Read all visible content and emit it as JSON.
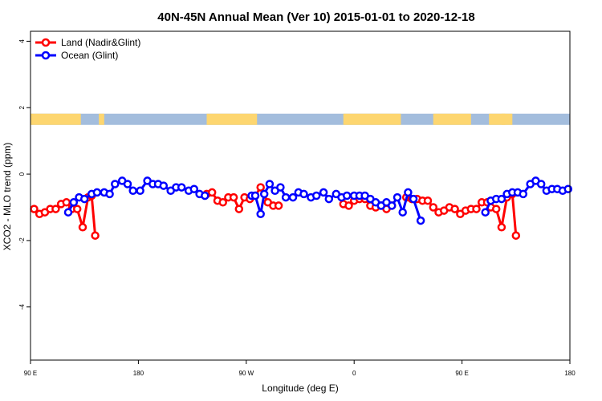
{
  "chart_data": {
    "type": "line",
    "title": "40N-45N Annual Mean (Ver 10)   2015-01-01 to 2020-12-18",
    "xlabel": "Longitude (deg E)",
    "ylabel": "XCO2 - MLO trend (ppm)",
    "xlim": [
      90,
      390
    ],
    "ylim": [
      -5.6,
      4.3
    ],
    "x_ticks": [
      {
        "value": 90,
        "label": "90 E"
      },
      {
        "value": 150,
        "label": "180"
      },
      {
        "value": 210,
        "label": "90 W"
      },
      {
        "value": 270,
        "label": "0"
      },
      {
        "value": 330,
        "label": "90 E"
      },
      {
        "value": 390,
        "label": "180"
      }
    ],
    "y_ticks": [
      {
        "value": 4,
        "label": "4"
      },
      {
        "value": 2,
        "label": "2"
      },
      {
        "value": 0,
        "label": "0"
      },
      {
        "value": -2,
        "label": "-2"
      },
      {
        "value": -4,
        "label": "-4"
      }
    ],
    "legend_position": "top-left",
    "land_ocean_strip": {
      "y_center": 1.65,
      "land_color": "#fdd670",
      "ocean_color": "#a3bddd",
      "land_ranges": [
        [
          90,
          118
        ],
        [
          128,
          131
        ],
        [
          188,
          216
        ],
        [
          264,
          296
        ],
        [
          314,
          335
        ],
        [
          345,
          354
        ],
        [
          352,
          358
        ]
      ],
      "land_label": "Land",
      "ocean_label": "Ocean"
    },
    "series": [
      {
        "name": "Land (Nadir&Glint)",
        "color": "#ff0000",
        "segments": [
          {
            "x": [
              92,
              95,
              98,
              101,
              104,
              107,
              110,
              113,
              116,
              119,
              122,
              124,
              126
            ],
            "y": [
              -1.05,
              -1.2,
              -1.15,
              -1.05,
              -1.05,
              -0.9,
              -0.85,
              -1.05,
              -1.05,
              -1.6,
              -0.7,
              -0.65,
              -1.85
            ]
          },
          {
            "x": [
              188,
              191,
              194,
              197,
              200,
              203,
              206,
              209,
              212,
              215,
              218,
              222,
              225,
              228
            ],
            "y": [
              -0.6,
              -0.55,
              -0.8,
              -0.85,
              -0.7,
              -0.7,
              -1.05,
              -0.7,
              -0.75,
              -0.65,
              -0.4,
              -0.85,
              -0.95,
              -0.95
            ]
          },
          {
            "x": [
              264,
              267,
              270,
              273,
              276,
              279,
              282,
              285,
              288,
              291
            ],
            "y": [
              -0.9,
              -0.95,
              -0.8,
              -0.75,
              -0.75,
              -0.95,
              -1.0,
              -0.95,
              -1.05,
              -0.95
            ]
          },
          {
            "x": [
              299,
              302,
              305,
              308,
              311,
              314,
              317,
              320,
              323,
              326,
              329,
              332,
              335,
              338,
              341
            ],
            "y": [
              -0.7,
              -0.75,
              -0.75,
              -0.8,
              -0.8,
              -1.0,
              -1.15,
              -1.1,
              -1.0,
              -1.05,
              -1.2,
              -1.1,
              -1.05,
              -1.05,
              -0.85
            ]
          },
          {
            "x": [
              344,
              346,
              349,
              352,
              355,
              358,
              360
            ],
            "y": [
              -0.85,
              -1.0,
              -1.05,
              -1.6,
              -0.7,
              -0.6,
              -1.85
            ]
          }
        ]
      },
      {
        "name": "Ocean (Glint)",
        "color": "#0000ff",
        "segments": [
          {
            "x": [
              111,
              114,
              117,
              120,
              124,
              127,
              131,
              134,
              137,
              141,
              144,
              147,
              151,
              155,
              158,
              161,
              164,
              168,
              171,
              174,
              178,
              181,
              184,
              187
            ],
            "y": [
              -1.15,
              -0.85,
              -0.7,
              -0.75,
              -0.6,
              -0.55,
              -0.55,
              -0.6,
              -0.3,
              -0.2,
              -0.3,
              -0.5,
              -0.5,
              -0.2,
              -0.3,
              -0.3,
              -0.35,
              -0.5,
              -0.4,
              -0.4,
              -0.5,
              -0.45,
              -0.6,
              -0.65
            ]
          },
          {
            "x": [
              213,
              215,
              218,
              220,
              223,
              226,
              229,
              232,
              236,
              239,
              242,
              246,
              249,
              253,
              256,
              260,
              263,
              266,
              270,
              273,
              276,
              279,
              282,
              285
            ],
            "y": [
              -0.65,
              -0.65,
              -1.2,
              -0.6,
              -0.3,
              -0.5,
              -0.4,
              -0.7,
              -0.7,
              -0.55,
              -0.6,
              -0.7,
              -0.65,
              -0.55,
              -0.75,
              -0.6,
              -0.7,
              -0.65,
              -0.65,
              -0.65,
              -0.65,
              -0.75,
              -0.85,
              -0.95
            ]
          },
          {
            "x": [
              285,
              288,
              291,
              294,
              297,
              300,
              303,
              307
            ],
            "y": [
              -0.95,
              -0.85,
              -0.95,
              -0.7,
              -1.15,
              -0.55,
              -0.75,
              -1.4
            ]
          },
          {
            "x": [
              343,
              346,
              349,
              352,
              355,
              358,
              361,
              364,
              368,
              371,
              374,
              377,
              380,
              383,
              386,
              389
            ],
            "y": [
              -1.15,
              -0.8,
              -0.75,
              -0.75,
              -0.6,
              -0.55,
              -0.55,
              -0.6,
              -0.3,
              -0.2,
              -0.3,
              -0.5,
              -0.45,
              -0.45,
              -0.5,
              -0.45
            ]
          }
        ]
      }
    ]
  }
}
